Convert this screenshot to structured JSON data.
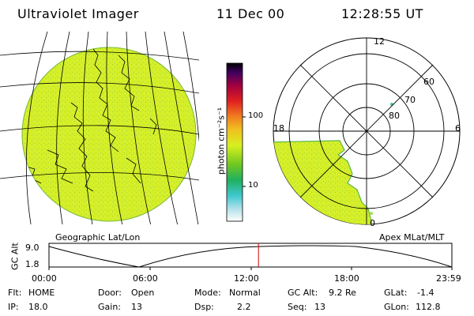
{
  "header": {
    "instrument": "Ultraviolet Imager",
    "date": "11 Dec 00",
    "time": "12:28:55 UT"
  },
  "colorbar": {
    "unit_label": "photon cm⁻²s⁻¹",
    "ticks": [
      "100",
      "10"
    ]
  },
  "left_panel": {
    "caption": "Geographic Lat/Lon"
  },
  "right_panel": {
    "caption": "Apex MLat/MLT",
    "mlt_labels": [
      "12",
      "18",
      "6",
      "0"
    ],
    "lat_labels": [
      "60",
      "70",
      "80"
    ]
  },
  "altitude_plot": {
    "ylabel": "GC Alt",
    "yticks": [
      "9.0",
      "1.8"
    ],
    "xticks": [
      "00:00",
      "06:00",
      "12:00",
      "18:00",
      "23:59"
    ],
    "current_time_fraction": 0.52
  },
  "status": {
    "row1": [
      {
        "key": "Flt:",
        "val": "HOME"
      },
      {
        "key": "Door:",
        "val": "Open"
      },
      {
        "key": "Mode:",
        "val": "Normal"
      },
      {
        "key": "GC Alt:",
        "val": "9.2 Re"
      },
      {
        "key": "GLat:",
        "val": "-1.4"
      }
    ],
    "row2": [
      {
        "key": "IP:",
        "val": "18.0"
      },
      {
        "key": "Gain:",
        "val": "13"
      },
      {
        "key": "Dsp:",
        "val": "2.2"
      },
      {
        "key": "Seq:",
        "val": "13"
      },
      {
        "key": "GLon:",
        "val": "112.8"
      }
    ]
  },
  "colors": {
    "emission": "#d4ef2a",
    "emission_alt": "#b8e03a",
    "marker": "#cc0000"
  }
}
